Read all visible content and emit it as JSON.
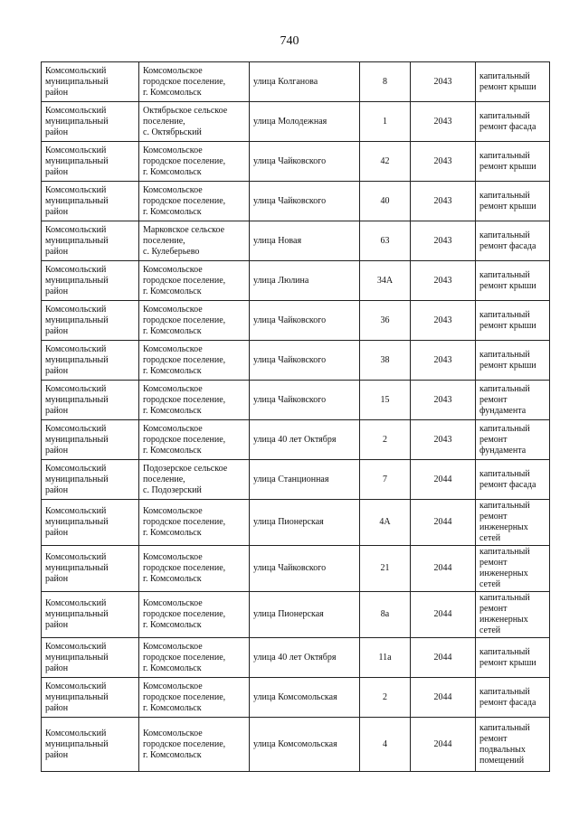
{
  "page_number": "740",
  "rows": [
    {
      "district": "Комсомольский\nмуниципальный\nрайон",
      "settlement": "Комсомольское\nгородское поселение,\n г. Комсомольск",
      "street": "улица Колганова",
      "house": "8",
      "year": "2043",
      "work": "капитальный\nремонт крыши"
    },
    {
      "district": "Комсомольский\nмуниципальный\nрайон",
      "settlement": "Октябрьское сельское\nпоселение,\nс. Октябрьский",
      "street": "улица Молодежная",
      "house": "1",
      "year": "2043",
      "work": "капитальный\nремонт фасада"
    },
    {
      "district": "Комсомольский\nмуниципальный\nрайон",
      "settlement": "Комсомольское\nгородское поселение,\nг. Комсомольск",
      "street": "улица Чайковского",
      "house": "42",
      "year": "2043",
      "work": "капитальный\nремонт крыши"
    },
    {
      "district": "Комсомольский\nмуниципальный\nрайон",
      "settlement": "Комсомольское\nгородское поселение,\nг. Комсомольск",
      "street": "улица Чайковского",
      "house": "40",
      "year": "2043",
      "work": "капитальный\nремонт крыши"
    },
    {
      "district": "Комсомольский\nмуниципальный\nрайон",
      "settlement": "Марковское сельское\nпоселение,\nс. Кулеберьево",
      "street": "улица Новая",
      "house": "63",
      "year": "2043",
      "work": "капитальный\nремонт фасада"
    },
    {
      "district": "Комсомольский\nмуниципальный\nрайон",
      "settlement": "Комсомольское\nгородское поселение,\nг. Комсомольск",
      "street": "улица Люлина",
      "house": "34А",
      "year": "2043",
      "work": "капитальный\nремонт крыши"
    },
    {
      "district": "Комсомольский\nмуниципальный\nрайон",
      "settlement": "Комсомольское\nгородское поселение,\nг. Комсомольск",
      "street": "улица Чайковского",
      "house": "36",
      "year": "2043",
      "work": "капитальный\nремонт крыши"
    },
    {
      "district": "Комсомольский\nмуниципальный\nрайон",
      "settlement": "Комсомольское\nгородское поселение,\nг. Комсомольск",
      "street": "улица Чайковского",
      "house": "38",
      "year": "2043",
      "work": "капитальный\nремонт крыши"
    },
    {
      "district": "Комсомольский\nмуниципальный\nрайон",
      "settlement": "Комсомольское\nгородское поселение,\nг. Комсомольск",
      "street": "улица Чайковского",
      "house": "15",
      "year": "2043",
      "work": "капитальный\nремонт\nфундамента"
    },
    {
      "district": "Комсомольский\nмуниципальный\nрайон",
      "settlement": "Комсомольское\nгородское поселение,\n г. Комсомольск",
      "street": "улица 40 лет Октября",
      "house": "2",
      "year": "2043",
      "work": "капитальный\nремонт\nфундамента"
    },
    {
      "district": "Комсомольский\nмуниципальный\nрайон",
      "settlement": "Подозерское сельское\nпоселение,\nс. Подозерский",
      "street": "улица Станционная",
      "house": "7",
      "year": "2044",
      "work": "капитальный\nремонт фасада"
    },
    {
      "district": "Комсомольский\nмуниципальный\nрайон",
      "settlement": "Комсомольское\nгородское поселение,\nг. Комсомольск",
      "street": " улица Пионерская",
      "house": "4А",
      "year": "2044",
      "work": "капитальный\nремонт\nинженерных\nсетей"
    },
    {
      "district": "Комсомольский\nмуниципальный\nрайон",
      "settlement": "Комсомольское\nгородское поселение,\n г. Комсомольск",
      "street": "улица Чайковского",
      "house": "21",
      "year": "2044",
      "work": "капитальный\nремонт\nинженерных\nсетей"
    },
    {
      "district": "Комсомольский\nмуниципальный\nрайон",
      "settlement": "Комсомольское\nгородское поселение,\n г. Комсомольск",
      "street": " улица Пионерская",
      "house": "8а",
      "year": "2044",
      "work": "капитальный\nремонт\nинженерных\nсетей"
    },
    {
      "district": "Комсомольский\nмуниципальный\nрайон",
      "settlement": "Комсомольское\nгородское поселение,\nг. Комсомольск",
      "street": "улица  40 лет Октября",
      "house": "11а",
      "year": "2044",
      "work": "капитальный\nремонт крыши"
    },
    {
      "district": "Комсомольский\nмуниципальный\nрайон",
      "settlement": "Комсомольское\nгородское поселение,\nг. Комсомольск",
      "street": "улица Комсомольская",
      "house": "2",
      "year": "2044",
      "work": "капитальный\nремонт фасада"
    },
    {
      "district": "Комсомольский\nмуниципальный\nрайон",
      "settlement": "Комсомольское\nгородское поселение,\nг. Комсомольск",
      "street": "улица Комсомольская",
      "house": "4",
      "year": "2044",
      "work": "капитальный\nремонт\nподвальных\nпомещений"
    }
  ]
}
